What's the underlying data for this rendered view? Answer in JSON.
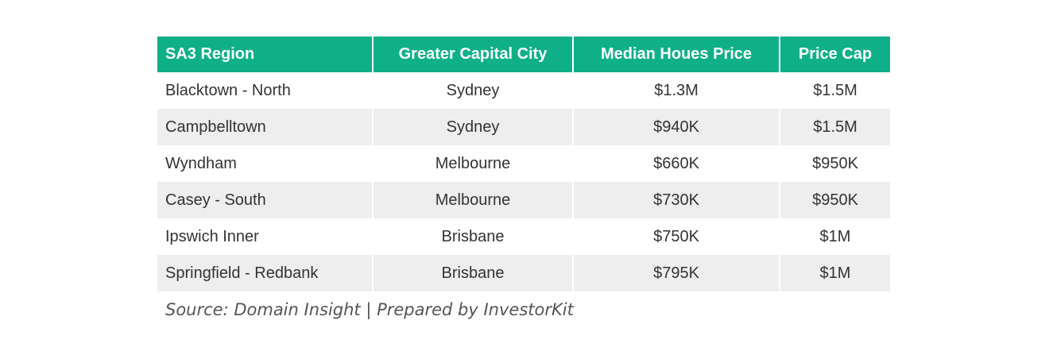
{
  "table": {
    "header_color": "#0fb087",
    "alt_row_color": "#eeeeee",
    "columns": [
      "SA3 Region",
      "Greater Capital City",
      "Median Houes Price",
      "Price Cap"
    ],
    "rows": [
      [
        "Blacktown - North",
        "Sydney",
        "$1.3M",
        "$1.5M"
      ],
      [
        "Campbelltown",
        "Sydney",
        "$940K",
        "$1.5M"
      ],
      [
        "Wyndham",
        "Melbourne",
        "$660K",
        "$950K"
      ],
      [
        "Casey - South",
        "Melbourne",
        "$730K",
        "$950K"
      ],
      [
        "Ipswich Inner",
        "Brisbane",
        "$750K",
        "$1M"
      ],
      [
        "Springfield - Redbank",
        "Brisbane",
        "$795K",
        "$1M"
      ]
    ]
  },
  "source": "Source: Domain Insight | Prepared by InvestorKit"
}
